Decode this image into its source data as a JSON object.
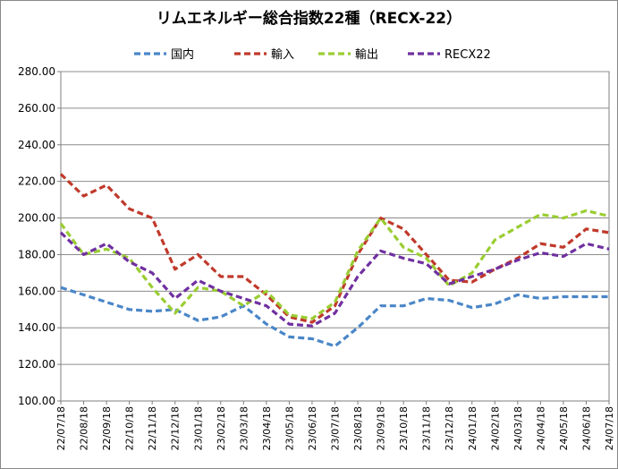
{
  "chart_data": {
    "type": "line",
    "title": "リムエネルギー総合指数22種（RECX-22）",
    "xlabel": "",
    "ylabel": "",
    "ylim": [
      100,
      280
    ],
    "y_ticks": [
      "100.00",
      "120.00",
      "140.00",
      "160.00",
      "180.00",
      "200.00",
      "220.00",
      "240.00",
      "260.00",
      "280.00"
    ],
    "x": [
      "22/07/18",
      "22/08/18",
      "22/09/18",
      "22/10/18",
      "22/11/18",
      "22/12/18",
      "23/01/18",
      "23/02/18",
      "23/03/18",
      "23/04/18",
      "23/05/18",
      "23/06/18",
      "23/07/18",
      "23/08/18",
      "23/09/18",
      "23/10/18",
      "23/11/18",
      "23/12/18",
      "24/01/18",
      "24/02/18",
      "24/03/18",
      "24/04/18",
      "24/05/18",
      "24/06/18",
      "24/07/18"
    ],
    "grid": true,
    "legend_position": "top",
    "series": [
      {
        "name": "国内",
        "color": "#4a86c8",
        "values": [
          162,
          158,
          154,
          150,
          149,
          150,
          144,
          146,
          152,
          142,
          135,
          134,
          130,
          140,
          152,
          152,
          156,
          155,
          151,
          153,
          158,
          156,
          157,
          157,
          157
        ]
      },
      {
        "name": "輸入",
        "color": "#c0392b",
        "values": [
          224,
          212,
          218,
          205,
          200,
          172,
          180,
          168,
          168,
          158,
          146,
          143,
          152,
          180,
          200,
          194,
          180,
          166,
          165,
          172,
          178,
          186,
          184,
          194,
          192
        ]
      },
      {
        "name": "輸出",
        "color": "#9acd32",
        "values": [
          197,
          180,
          183,
          178,
          162,
          148,
          162,
          160,
          152,
          160,
          147,
          145,
          154,
          182,
          200,
          184,
          178,
          163,
          170,
          188,
          195,
          202,
          200,
          204,
          201
        ]
      },
      {
        "name": "RECX22",
        "color": "#7030a0",
        "values": [
          192,
          180,
          186,
          176,
          170,
          156,
          166,
          160,
          156,
          152,
          142,
          141,
          148,
          168,
          182,
          178,
          175,
          164,
          168,
          172,
          177,
          181,
          179,
          186,
          183
        ]
      }
    ]
  }
}
